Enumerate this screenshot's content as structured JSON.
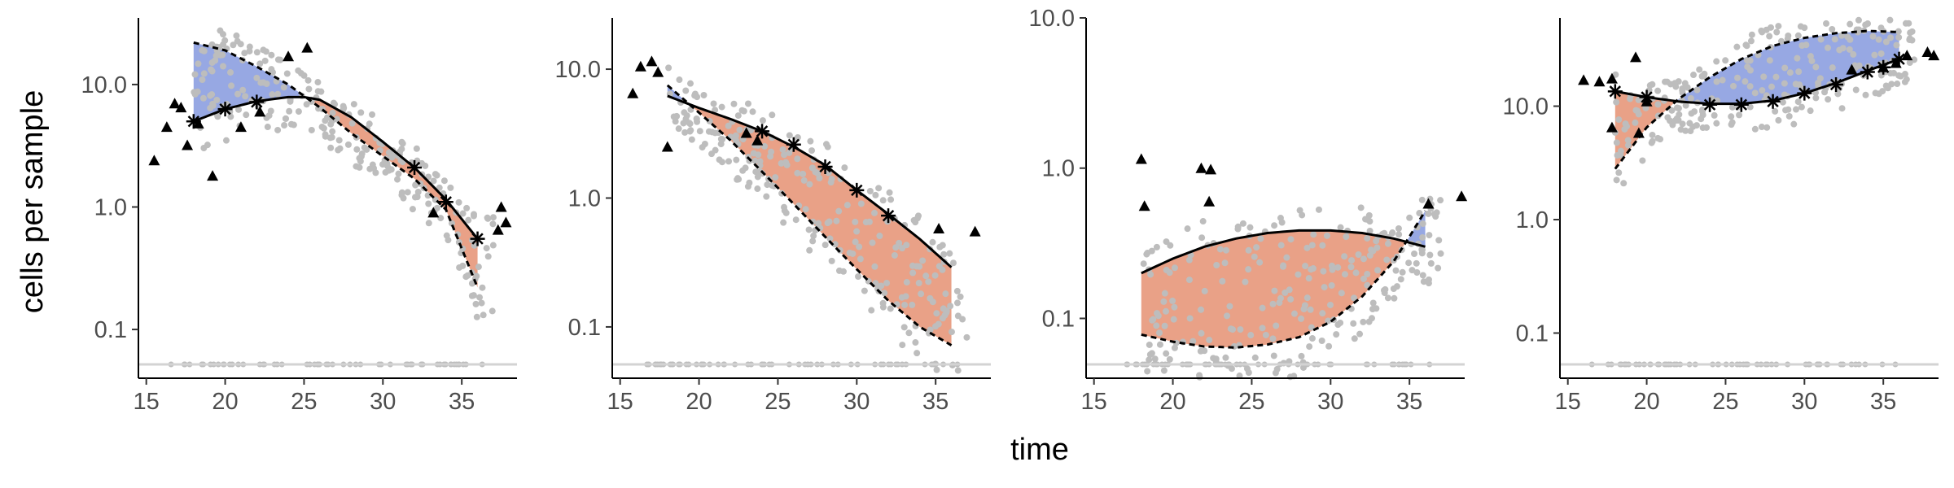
{
  "figure": {
    "xlabel": "time",
    "ylabel": "cells per sample"
  },
  "chart_data": [
    {
      "type": "scatter",
      "panel": 1,
      "xlim": [
        14.5,
        38.5
      ],
      "ylim": [
        0.04,
        35
      ],
      "y_scale": "log",
      "xticks": [
        "15",
        "20",
        "25",
        "30",
        "35"
      ],
      "yticks": [
        "0.1",
        "1.0",
        "10.0"
      ],
      "grid": false,
      "fitted_curve": {
        "x": [
          18,
          20,
          22,
          24,
          25,
          26,
          28,
          30,
          32,
          34,
          36
        ],
        "y": [
          5.0,
          6.3,
          7.3,
          7.9,
          7.9,
          7.5,
          5.4,
          3.4,
          2.1,
          1.15,
          0.55
        ]
      },
      "upper_bound": {
        "x": [
          18,
          20,
          22,
          24,
          26,
          28,
          30,
          32,
          34,
          36
        ],
        "y": [
          22,
          19,
          14,
          10,
          6.5,
          4.0,
          2.6,
          1.7,
          0.95,
          0.22
        ]
      },
      "star_points": {
        "x": [
          18,
          20,
          22,
          32,
          34,
          36
        ],
        "y": [
          5.0,
          6.3,
          7.2,
          2.1,
          1.1,
          0.55
        ]
      },
      "triangles": {
        "x": [
          15.5,
          16.3,
          16.8,
          17.2,
          17.6,
          18.3,
          19.2,
          21.0,
          22.2,
          24.0,
          25.2,
          33.2,
          37.5,
          37.8,
          37.3
        ],
        "y": [
          2.4,
          4.5,
          7.0,
          6.5,
          3.2,
          4.8,
          1.8,
          4.5,
          6.0,
          17.0,
          20.0,
          0.9,
          1.0,
          0.75,
          0.65
        ]
      },
      "colors": {
        "above_fill": "#8c9fe0",
        "below_fill": "#e7977a",
        "points": "#bdbdbd",
        "curve": "#000000",
        "baseline": "#d3d3d3"
      }
    },
    {
      "type": "scatter",
      "panel": 2,
      "xlim": [
        14.5,
        38.5
      ],
      "ylim": [
        0.04,
        25
      ],
      "y_scale": "log",
      "xticks": [
        "15",
        "20",
        "25",
        "30",
        "35"
      ],
      "yticks": [
        "0.1",
        "1.0",
        "10.0"
      ],
      "grid": false,
      "fitted_curve": {
        "x": [
          18,
          20,
          22,
          24,
          26,
          28,
          30,
          32,
          34,
          36
        ],
        "y": [
          6.2,
          5.0,
          4.1,
          3.3,
          2.5,
          1.8,
          1.15,
          0.75,
          0.48,
          0.29
        ]
      },
      "upper_bound": {
        "x": [
          18,
          20,
          22,
          24,
          26,
          28,
          30,
          32,
          34,
          36
        ],
        "y": [
          7.5,
          4.6,
          2.8,
          1.6,
          0.9,
          0.5,
          0.28,
          0.16,
          0.1,
          0.072
        ]
      },
      "star_points": {
        "x": [
          24,
          26,
          28,
          30,
          32
        ],
        "y": [
          3.3,
          2.6,
          1.75,
          1.15,
          0.73
        ]
      },
      "triangles": {
        "x": [
          15.8,
          16.3,
          17.0,
          17.4,
          18.0,
          23.0,
          23.7,
          37.5,
          35.2
        ],
        "y": [
          6.5,
          10.5,
          11.5,
          9.5,
          2.5,
          3.2,
          2.8,
          0.55,
          0.58
        ]
      },
      "colors": {
        "above_fill": "#8c9fe0",
        "below_fill": "#e7977a",
        "points": "#bdbdbd",
        "curve": "#000000",
        "baseline": "#d3d3d3"
      }
    },
    {
      "type": "scatter",
      "panel": 3,
      "xlim": [
        14.5,
        38.5
      ],
      "ylim": [
        0.04,
        10
      ],
      "y_scale": "log",
      "xticks": [
        "15",
        "20",
        "25",
        "30",
        "35"
      ],
      "yticks": [
        "0.1",
        "1.0",
        "10.0"
      ],
      "grid": false,
      "fitted_curve": {
        "x": [
          18,
          20,
          22,
          24,
          26,
          28,
          30,
          32,
          34,
          36
        ],
        "y": [
          0.2,
          0.25,
          0.3,
          0.34,
          0.37,
          0.385,
          0.385,
          0.37,
          0.34,
          0.3
        ]
      },
      "upper_bound": {
        "x": [
          18,
          20,
          22,
          24,
          26,
          28,
          30,
          32,
          34,
          35,
          36
        ],
        "y": [
          0.078,
          0.07,
          0.065,
          0.064,
          0.067,
          0.075,
          0.095,
          0.14,
          0.24,
          0.35,
          0.52
        ]
      },
      "star_points": {
        "x": [],
        "y": []
      },
      "triangles": {
        "x": [
          18.0,
          18.2,
          21.8,
          22.4,
          38.3,
          22.3,
          36.2
        ],
        "y": [
          1.15,
          0.56,
          1.0,
          0.98,
          0.65,
          0.6,
          0.58
        ]
      },
      "colors": {
        "above_fill": "#8c9fe0",
        "below_fill": "#e7977a",
        "points": "#bdbdbd",
        "curve": "#000000",
        "baseline": "#d3d3d3"
      }
    },
    {
      "type": "scatter",
      "panel": 4,
      "xlim": [
        14.5,
        38.5
      ],
      "ylim": [
        0.04,
        60
      ],
      "y_scale": "log",
      "xticks": [
        "15",
        "20",
        "25",
        "30",
        "35"
      ],
      "yticks": [
        "0.1",
        "1.0",
        "10.0"
      ],
      "grid": false,
      "fitted_curve": {
        "x": [
          18,
          20,
          22,
          24,
          26,
          28,
          30,
          32,
          34,
          36
        ],
        "y": [
          13.5,
          12.0,
          11.0,
          10.5,
          10.5,
          11.2,
          13.0,
          16.0,
          20.5,
          26.0
        ]
      },
      "upper_bound": {
        "x": [
          18,
          20,
          22,
          24,
          26,
          28,
          30,
          32,
          34,
          36
        ],
        "y": [
          2.8,
          6.5,
          11.5,
          18.0,
          26.0,
          34.0,
          40.0,
          44.0,
          46.0,
          45.0
        ]
      },
      "star_points": {
        "x": [
          18,
          20,
          24,
          26,
          28,
          30,
          32,
          34,
          35,
          36
        ],
        "y": [
          13.5,
          12.0,
          10.3,
          10.3,
          11.0,
          13.0,
          15.5,
          20.0,
          22.0,
          26.0
        ]
      },
      "triangles": {
        "x": [
          16.0,
          17.0,
          17.8,
          19.3,
          20.0,
          33.0,
          35.0,
          35.8,
          36.5,
          37.8,
          38.2,
          17.8,
          19.5
        ],
        "y": [
          17.0,
          16.5,
          17.5,
          27.0,
          11.0,
          21.0,
          22.0,
          24.0,
          28.0,
          30.0,
          28.0,
          6.5,
          5.8
        ]
      },
      "colors": {
        "above_fill": "#8c9fe0",
        "below_fill": "#e7977a",
        "points": "#bdbdbd",
        "curve": "#000000",
        "baseline": "#d3d3d3"
      }
    }
  ]
}
